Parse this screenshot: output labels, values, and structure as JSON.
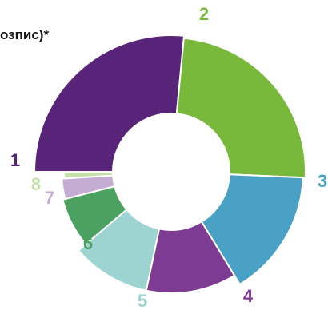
{
  "chart_data": {
    "type": "pie",
    "style": "donut",
    "title": "озпис)*",
    "categories": [
      "1",
      "2",
      "3",
      "4",
      "5",
      "6",
      "7",
      "8"
    ],
    "values": [
      26.5,
      24.2,
      15.6,
      12.0,
      10.5,
      7.2,
      3.0,
      1.0
    ],
    "colors": [
      "#58247a",
      "#78b83a",
      "#4aa1c6",
      "#7e3b94",
      "#9dd3d0",
      "#4ba15f",
      "#c4acd3",
      "#c5dfa8"
    ],
    "label_colors": [
      "#58247a",
      "#78b83a",
      "#4aa1c6",
      "#7e3b94",
      "#9dd3d0",
      "#4ba15f",
      "#c4acd3",
      "#c5dfa8"
    ]
  }
}
